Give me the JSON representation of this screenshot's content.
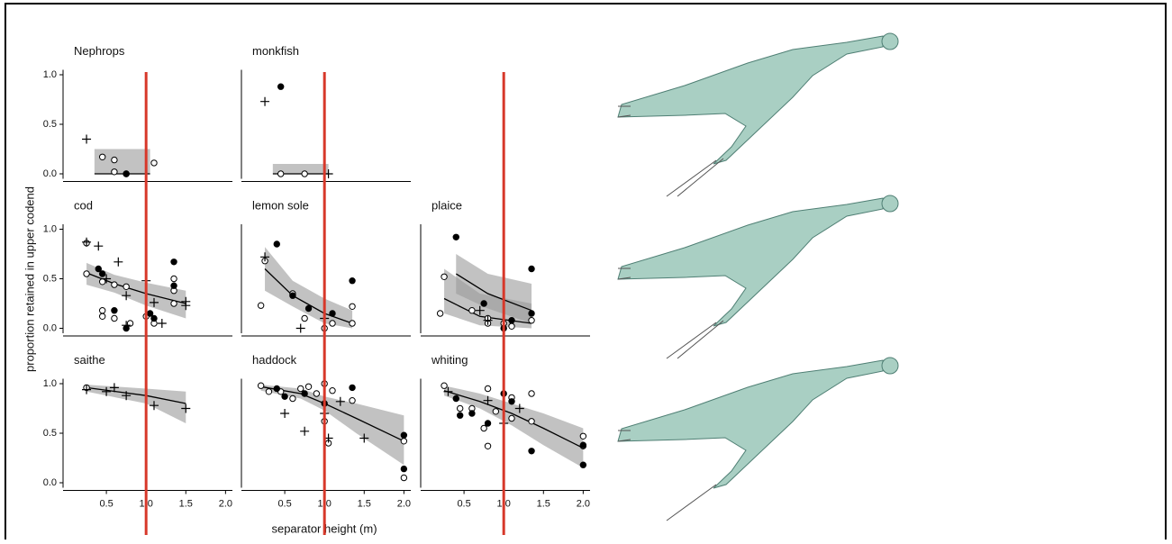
{
  "figure": {
    "xlabel": "separator height (m)",
    "ylabel": "proportion retained in upper codend",
    "reference_line": {
      "x": 1.0,
      "color": "#d7382a"
    }
  },
  "chart_data": [
    {
      "type": "scatter",
      "title": "Nephrops",
      "xlim": [
        0,
        2.2
      ],
      "ylim": [
        -0.05,
        1.05
      ],
      "yticks": [
        {
          "value": 0,
          "label": "0.0"
        },
        0.5,
        {
          "value": 1,
          "label": "1.0"
        }
      ],
      "series": [
        {
          "marker": "open",
          "x": [
            0.45,
            0.6,
            0.6,
            0.75,
            1.1
          ],
          "y": [
            0.17,
            0.14,
            0.02,
            0.0,
            0.11
          ]
        },
        {
          "marker": "filled",
          "x": [
            0.75
          ],
          "y": [
            0.0
          ]
        },
        {
          "marker": "plus",
          "x": [
            0.25
          ],
          "y": [
            0.35
          ]
        }
      ],
      "fits": [
        {
          "x": [
            0.35,
            1.05
          ],
          "y": [
            0,
            0
          ],
          "lower": [
            0,
            0
          ],
          "upper": [
            0.25,
            0.25
          ]
        }
      ]
    },
    {
      "type": "scatter",
      "title": "monkfish",
      "xlim": [
        0,
        2.2
      ],
      "ylim": [
        -0.05,
        1.05
      ],
      "series": [
        {
          "marker": "open",
          "x": [
            0.45,
            0.75
          ],
          "y": [
            0.0,
            0.0
          ]
        },
        {
          "marker": "filled",
          "x": [
            0.45
          ],
          "y": [
            0.88
          ]
        },
        {
          "marker": "plus",
          "x": [
            0.25,
            1.05
          ],
          "y": [
            0.73,
            0.0
          ]
        }
      ],
      "fits": [
        {
          "x": [
            0.35,
            1.05
          ],
          "y": [
            0,
            0
          ],
          "lower": [
            0,
            0
          ],
          "upper": [
            0.1,
            0.1
          ]
        }
      ]
    },
    {
      "type": "scatter",
      "title": "cod",
      "xlim": [
        0,
        2.2
      ],
      "ylim": [
        -0.05,
        1.05
      ],
      "yticks": [
        {
          "value": 0,
          "label": "0.0"
        },
        0.5,
        {
          "value": 1,
          "label": "1.0"
        }
      ],
      "series": [
        {
          "marker": "open",
          "x": [
            0.25,
            0.45,
            0.45,
            0.45,
            0.6,
            0.6,
            0.75,
            0.8,
            1.0,
            1.1,
            1.35,
            1.35,
            1.35,
            0.25
          ],
          "y": [
            0.55,
            0.47,
            0.18,
            0.12,
            0.1,
            0.44,
            0.42,
            0.05,
            0.12,
            0.05,
            0.5,
            0.38,
            0.25,
            0.86
          ]
        },
        {
          "marker": "filled",
          "x": [
            0.4,
            0.45,
            0.6,
            0.75,
            1.05,
            1.1,
            1.35,
            1.35
          ],
          "y": [
            0.6,
            0.55,
            0.18,
            0.0,
            0.15,
            0.1,
            0.67,
            0.43
          ]
        },
        {
          "marker": "plus",
          "x": [
            0.25,
            0.4,
            0.5,
            0.65,
            0.75,
            0.75,
            1.0,
            1.1,
            1.2,
            1.5,
            1.5
          ],
          "y": [
            0.87,
            0.83,
            0.5,
            0.67,
            0.33,
            0.03,
            0.48,
            0.26,
            0.05,
            0.27,
            0.23
          ]
        }
      ],
      "fits": [
        {
          "x": [
            0.25,
            0.6,
            1.0,
            1.5
          ],
          "y": [
            0.56,
            0.45,
            0.35,
            0.25
          ],
          "lower": [
            0.44,
            0.36,
            0.23,
            0.1
          ],
          "upper": [
            0.66,
            0.54,
            0.46,
            0.38
          ]
        }
      ]
    },
    {
      "type": "scatter",
      "title": "lemon sole",
      "xlim": [
        0,
        2.2
      ],
      "ylim": [
        -0.05,
        1.05
      ],
      "series": [
        {
          "marker": "open",
          "x": [
            0.2,
            0.25,
            0.6,
            0.75,
            1.0,
            1.1,
            1.35,
            1.35
          ],
          "y": [
            0.23,
            0.68,
            0.35,
            0.1,
            0.0,
            0.05,
            0.22,
            0.05
          ]
        },
        {
          "marker": "filled",
          "x": [
            0.4,
            0.6,
            0.8,
            1.1,
            1.35
          ],
          "y": [
            0.85,
            0.33,
            0.2,
            0.15,
            0.48
          ]
        },
        {
          "marker": "plus",
          "x": [
            0.25,
            0.7,
            1.0
          ],
          "y": [
            0.72,
            0.0,
            0.1
          ]
        }
      ],
      "fits": [
        {
          "x": [
            0.25,
            0.6,
            1.0,
            1.35
          ],
          "y": [
            0.6,
            0.33,
            0.15,
            0.05
          ],
          "lower": [
            0.38,
            0.22,
            0.05,
            0.0
          ],
          "upper": [
            0.82,
            0.48,
            0.3,
            0.18
          ]
        }
      ]
    },
    {
      "type": "scatter",
      "title": "plaice",
      "xlim": [
        0,
        2.2
      ],
      "ylim": [
        -0.05,
        1.05
      ],
      "series": [
        {
          "marker": "open",
          "x": [
            0.2,
            0.25,
            0.6,
            0.8,
            0.8,
            1.0,
            1.1,
            1.35
          ],
          "y": [
            0.15,
            0.52,
            0.18,
            0.05,
            0.1,
            0.05,
            0.02,
            0.08
          ]
        },
        {
          "marker": "filled",
          "x": [
            0.4,
            0.75,
            1.0,
            1.1,
            1.35,
            1.35
          ],
          "y": [
            0.92,
            0.25,
            0.0,
            0.08,
            0.6,
            0.15
          ]
        },
        {
          "marker": "plus",
          "x": [
            0.7,
            0.8
          ],
          "y": [
            0.18,
            0.08
          ]
        }
      ],
      "fits": [
        {
          "x": [
            0.4,
            0.8,
            1.35
          ],
          "y": [
            0.55,
            0.35,
            0.18
          ],
          "lower": [
            0.35,
            0.2,
            0.05
          ],
          "upper": [
            0.75,
            0.55,
            0.45
          ]
        },
        {
          "x": [
            0.25,
            0.7,
            1.35
          ],
          "y": [
            0.3,
            0.12,
            0.05
          ],
          "lower": [
            0.15,
            0.03,
            0.0
          ],
          "upper": [
            0.6,
            0.35,
            0.25
          ]
        }
      ]
    },
    {
      "type": "scatter",
      "title": "saithe",
      "xlim": [
        0,
        2.2
      ],
      "ylim": [
        -0.05,
        1.05
      ],
      "yticks": [
        {
          "value": 0,
          "label": "0.0"
        },
        0.5,
        {
          "value": 1,
          "label": "1.0"
        }
      ],
      "xticks": [
        0.5,
        {
          "value": 1,
          "label": "1.0"
        },
        1.5,
        {
          "value": 2,
          "label": "2.0"
        }
      ],
      "series": [
        {
          "marker": "open",
          "x": [
            0.25
          ],
          "y": [
            0.96
          ]
        },
        {
          "marker": "plus",
          "x": [
            0.25,
            0.5,
            0.6,
            0.75,
            1.1,
            1.5
          ],
          "y": [
            0.94,
            0.92,
            0.96,
            0.88,
            0.78,
            0.75
          ]
        }
      ],
      "fits": [
        {
          "x": [
            0.25,
            1.0,
            1.5
          ],
          "y": [
            0.96,
            0.88,
            0.8
          ],
          "lower": [
            0.92,
            0.8,
            0.6
          ],
          "upper": [
            0.99,
            0.95,
            0.92
          ]
        }
      ]
    },
    {
      "type": "scatter",
      "title": "haddock",
      "xlim": [
        0,
        2.2
      ],
      "ylim": [
        -0.05,
        1.05
      ],
      "xticks": [
        0.5,
        {
          "value": 1,
          "label": "1.0"
        },
        1.5,
        {
          "value": 2,
          "label": "2.0"
        }
      ],
      "series": [
        {
          "marker": "open",
          "x": [
            0.2,
            0.3,
            0.45,
            0.6,
            0.7,
            0.8,
            0.9,
            1.0,
            1.05,
            1.1,
            1.35,
            2.0,
            2.0,
            1.0
          ],
          "y": [
            0.98,
            0.92,
            0.92,
            0.85,
            0.95,
            0.97,
            0.9,
            1.0,
            0.4,
            0.93,
            0.83,
            0.42,
            0.05,
            0.62
          ]
        },
        {
          "marker": "filled",
          "x": [
            0.4,
            0.5,
            0.75,
            1.0,
            1.35,
            2.0,
            2.0
          ],
          "y": [
            0.95,
            0.87,
            0.9,
            0.8,
            0.96,
            0.48,
            0.14
          ]
        },
        {
          "marker": "plus",
          "x": [
            0.5,
            0.75,
            1.0,
            1.05,
            1.2,
            1.5
          ],
          "y": [
            0.7,
            0.52,
            0.7,
            0.45,
            0.82,
            0.45
          ]
        }
      ],
      "fits": [
        {
          "x": [
            0.2,
            0.7,
            1.0,
            1.4,
            2.0
          ],
          "y": [
            0.97,
            0.9,
            0.8,
            0.65,
            0.42
          ],
          "lower": [
            0.93,
            0.85,
            0.73,
            0.5,
            0.18
          ],
          "upper": [
            0.99,
            0.95,
            0.87,
            0.8,
            0.68
          ]
        }
      ]
    },
    {
      "type": "scatter",
      "title": "whiting",
      "xlim": [
        0,
        2.2
      ],
      "ylim": [
        -0.05,
        1.05
      ],
      "xticks": [
        0.5,
        {
          "value": 1,
          "label": "1.0"
        },
        1.5,
        {
          "value": 2,
          "label": "2.0"
        }
      ],
      "series": [
        {
          "marker": "open",
          "x": [
            0.25,
            0.45,
            0.6,
            0.75,
            0.8,
            0.8,
            0.9,
            1.1,
            1.1,
            1.35,
            1.35,
            2.0,
            2.0
          ],
          "y": [
            0.98,
            0.75,
            0.75,
            0.55,
            0.37,
            0.95,
            0.72,
            0.65,
            0.86,
            0.62,
            0.9,
            0.47,
            0.37
          ]
        },
        {
          "marker": "filled",
          "x": [
            0.4,
            0.45,
            0.6,
            0.8,
            1.0,
            1.1,
            1.35,
            2.0,
            2.0
          ],
          "y": [
            0.85,
            0.68,
            0.7,
            0.6,
            0.9,
            0.82,
            0.32,
            0.18,
            0.38
          ]
        },
        {
          "marker": "plus",
          "x": [
            0.3,
            0.8,
            1.0,
            1.2
          ],
          "y": [
            0.92,
            0.83,
            0.6,
            0.75
          ]
        }
      ],
      "fits": [
        {
          "x": [
            0.25,
            0.7,
            1.1,
            1.5,
            2.0
          ],
          "y": [
            0.93,
            0.82,
            0.7,
            0.55,
            0.35
          ],
          "lower": [
            0.88,
            0.75,
            0.58,
            0.38,
            0.15
          ],
          "upper": [
            0.98,
            0.9,
            0.8,
            0.7,
            0.55
          ]
        }
      ]
    }
  ]
}
